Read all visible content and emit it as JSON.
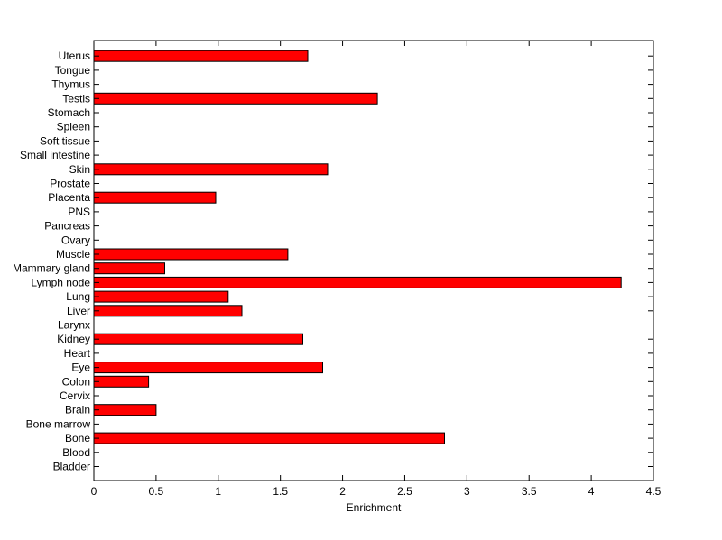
{
  "chart_data": {
    "type": "bar",
    "orientation": "horizontal",
    "xlabel": "Enrichment",
    "ylabel": "",
    "title": "",
    "xlim": [
      0,
      4.5
    ],
    "xticks": [
      "0",
      "0.5",
      "1",
      "1.5",
      "2",
      "2.5",
      "3",
      "3.5",
      "4",
      "4.5"
    ],
    "grid": false,
    "bar_color": "#ff0000",
    "categories": [
      "Bladder",
      "Blood",
      "Bone",
      "Bone marrow",
      "Brain",
      "Cervix",
      "Colon",
      "Eye",
      "Heart",
      "Kidney",
      "Larynx",
      "Liver",
      "Lung",
      "Lymph node",
      "Mammary gland",
      "Muscle",
      "Ovary",
      "Pancreas",
      "PNS",
      "Placenta",
      "Prostate",
      "Skin",
      "Small intestine",
      "Soft tissue",
      "Spleen",
      "Stomach",
      "Testis",
      "Thymus",
      "Tongue",
      "Uterus"
    ],
    "values": [
      0,
      0,
      2.82,
      0,
      0.5,
      0,
      0.44,
      1.84,
      0,
      1.68,
      0,
      1.19,
      1.08,
      4.24,
      0.57,
      1.56,
      0,
      0,
      0,
      0.98,
      0,
      1.88,
      0,
      0,
      0,
      0,
      2.28,
      0,
      0,
      1.72
    ]
  }
}
